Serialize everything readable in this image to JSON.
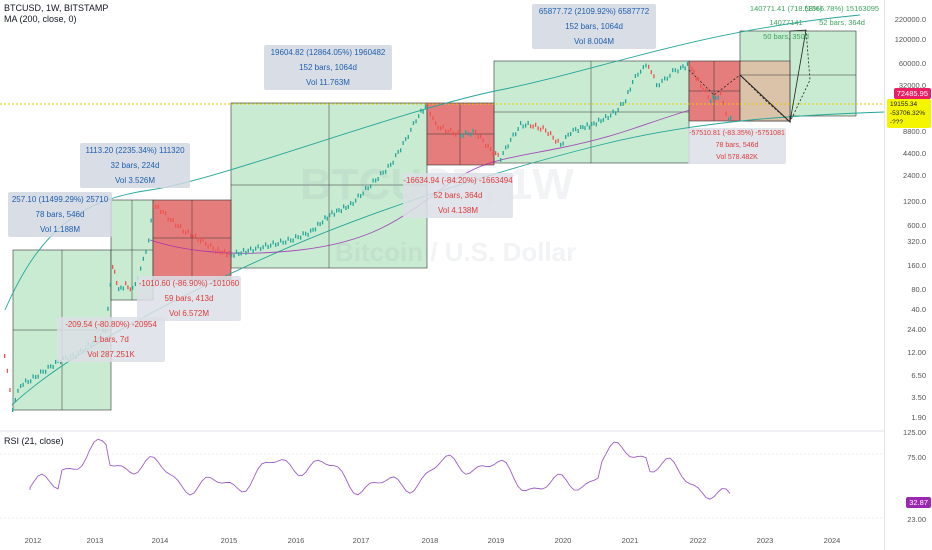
{
  "header": {
    "symbol_line": "BTCUSD, 1W, BITSTAMP",
    "ma_line": "MA (200, close, 0)",
    "rsi_line": "RSI (21, close)"
  },
  "watermark": {
    "ticker": "BTCUSD, 1W",
    "name": "Bitcoin / U.S. Dollar"
  },
  "price_scale": [
    "220000.0",
    "120000.0",
    "60000.0",
    "32000.0",
    "16000.0",
    "8800.0",
    "4400.0",
    "2400.0",
    "1200.0",
    "600.0",
    "320.0",
    "160.0",
    "80.0",
    "40.0",
    "24.00",
    "12.00",
    "6.50",
    "3.50",
    "1.90"
  ],
  "rsi_scale": [
    "125.00",
    "75.00",
    "23.00"
  ],
  "current_price": "72485.95",
  "yellow_tag_lines": [
    "19155.34",
    "-53706.32%",
    "-???"
  ],
  "rsi_value": "32.87",
  "time_axis": [
    "2012",
    "2013",
    "2014",
    "2015",
    "2016",
    "2017",
    "2018",
    "2019",
    "2020",
    "2021",
    "2022",
    "2023",
    "2024"
  ],
  "measurements": {
    "m1": {
      "line1": "257.10 (11499.29%) 25710",
      "line2": "78 bars, 546d",
      "line3": "Vol 1.188M"
    },
    "m2": {
      "line1": "1113.20 (2235.34%) 111320",
      "line2": "32 bars, 224d",
      "line3": "Vol 3.526M"
    },
    "m3": {
      "line1": "19604.82 (12864.05%) 1960482",
      "line2": "152 bars, 1064d",
      "line3": "Vol 11.763M"
    },
    "m4": {
      "line1": "65877.72 (2109.92%) 6587772",
      "line2": "152 bars, 1064d",
      "line3": "Vol 8.004M"
    },
    "m5": {
      "line1": "-209.54 (-80.80%) -20954",
      "line2": "1 bars, 7d",
      "line3": "Vol 287.251K"
    },
    "m6": {
      "line1": "-1010.60 (-86.90%) -101060",
      "line2": "59 bars, 413d",
      "line3": "Vol 6.572M"
    },
    "m7": {
      "line1": "-16634.94 (-84.20%) -1663494",
      "line2": "52 bars, 364d",
      "line3": "Vol 4.138M"
    },
    "m8": {
      "line1": "-57510.81 (-83.35%) -5751081",
      "line2": "78 bars, 546d",
      "line3": "Vol 578.482K"
    },
    "m9": {
      "line1": "140771.41 (718.58%) 14077141",
      "line2": "50 bars, 350d",
      "line3": ""
    },
    "m10": {
      "line1": "(1066.78%) 15163095",
      "line2": "52 bars, 364d",
      "line3": ""
    }
  },
  "colors": {
    "green_zone": "#b7e4c3",
    "red_zone": "#e06666",
    "ma_line": "#9c27b0",
    "rsi_line": "#9c5fc4",
    "candle_up": "#26a69a",
    "candle_down": "#ef5350",
    "curve": "#26a69a",
    "current_price_bg": "#e91e63"
  }
}
